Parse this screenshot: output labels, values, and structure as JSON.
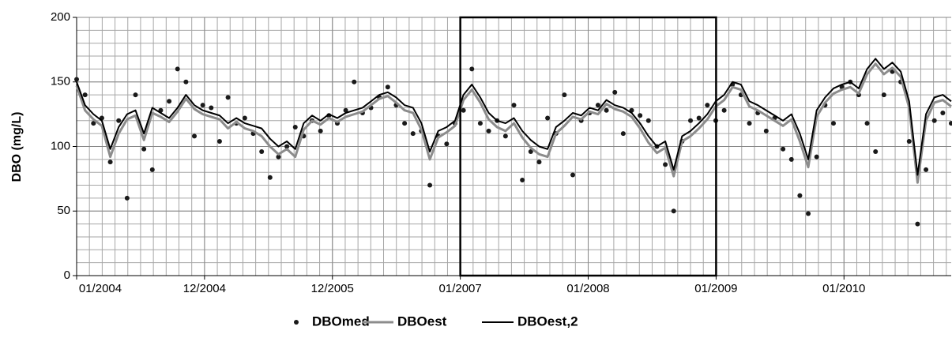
{
  "chart_data": {
    "type": "line",
    "ylabel": "DBO (mg/L)",
    "x": [
      0,
      24,
      48,
      72,
      96,
      120,
      144,
      168,
      192,
      216,
      240,
      264,
      288,
      312,
      336,
      360,
      384,
      408,
      432,
      456,
      480,
      504,
      528,
      552,
      576,
      600,
      624,
      648,
      672,
      696,
      720,
      744,
      768,
      792,
      816,
      840,
      864,
      888,
      912,
      936,
      960,
      984,
      1008,
      1032,
      1056,
      1080,
      1104,
      1128,
      1152,
      1176,
      1200,
      1224,
      1248,
      1272,
      1296,
      1320,
      1344,
      1368,
      1392,
      1416,
      1440,
      1464,
      1488,
      1512,
      1536,
      1560,
      1584,
      1608,
      1632,
      1656,
      1680,
      1704,
      1728,
      1752,
      1776,
      1800,
      1824,
      1848,
      1872,
      1896,
      1920,
      1944,
      1968,
      1992,
      2016,
      2040,
      2064,
      2088,
      2112,
      2136,
      2160,
      2184,
      2208,
      2232,
      2256,
      2280,
      2304,
      2328,
      2352,
      2376,
      2400,
      2424,
      2448,
      2472,
      2496
    ],
    "series": [
      {
        "name": "DBOmed",
        "color": "#1a1a1a",
        "marker": "dot",
        "values": [
          152,
          140,
          118,
          122,
          88,
          120,
          60,
          140,
          98,
          82,
          128,
          135,
          160,
          150,
          108,
          132,
          130,
          104,
          138,
          118,
          122,
          110,
          96,
          76,
          92,
          100,
          115,
          108,
          120,
          112,
          124,
          118,
          128,
          150,
          126,
          130,
          138,
          146,
          132,
          118,
          110,
          112,
          70,
          108,
          102,
          118,
          128,
          160,
          118,
          112,
          120,
          108,
          132,
          74,
          96,
          88,
          122,
          110,
          140,
          78,
          120,
          126,
          132,
          128,
          142,
          110,
          128,
          124,
          120,
          100,
          86,
          50,
          104,
          120,
          122,
          132,
          120,
          128,
          148,
          140,
          118,
          126,
          112,
          122,
          98,
          90,
          62,
          48,
          92,
          132,
          118,
          146,
          150,
          140,
          118,
          96,
          140,
          158,
          150,
          104,
          40,
          82,
          120,
          126,
          118
        ]
      },
      {
        "name": "DBOest",
        "color": "#8c8c8c",
        "values": [
          147,
          128,
          121,
          116,
          92,
          110,
          121,
          124,
          105,
          126,
          123,
          119,
          127,
          137,
          129,
          125,
          123,
          121,
          114,
          119,
          114,
          112,
          108,
          100,
          94,
          98,
          92,
          113,
          120,
          117,
          122,
          119,
          123,
          125,
          127,
          132,
          137,
          139,
          134,
          128,
          126,
          113,
          90,
          107,
          111,
          116,
          136,
          144,
          134,
          121,
          115,
          112,
          118,
          107,
          99,
          94,
          92,
          110,
          116,
          123,
          121,
          127,
          125,
          133,
          129,
          127,
          123,
          114,
          103,
          95,
          99,
          77,
          104,
          108,
          114,
          121,
          131,
          136,
          146,
          144,
          131,
          128,
          124,
          120,
          116,
          121,
          104,
          84,
          123,
          134,
          141,
          144,
          146,
          141,
          156,
          164,
          156,
          161,
          154,
          130,
          72,
          120,
          134,
          136,
          131
        ]
      },
      {
        "name": "DBOest,2",
        "color": "#000000",
        "values": [
          150,
          132,
          125,
          120,
          98,
          115,
          125,
          128,
          110,
          130,
          126,
          122,
          130,
          140,
          132,
          128,
          126,
          124,
          118,
          122,
          118,
          116,
          114,
          106,
          100,
          104,
          98,
          118,
          124,
          120,
          125,
          122,
          126,
          128,
          130,
          135,
          140,
          142,
          138,
          132,
          130,
          118,
          96,
          112,
          115,
          120,
          140,
          148,
          138,
          126,
          120,
          118,
          122,
          112,
          105,
          100,
          98,
          115,
          120,
          126,
          124,
          130,
          128,
          136,
          132,
          130,
          126,
          118,
          108,
          100,
          104,
          82,
          108,
          112,
          118,
          125,
          135,
          140,
          150,
          148,
          135,
          132,
          128,
          124,
          120,
          125,
          110,
          90,
          128,
          138,
          145,
          148,
          150,
          145,
          160,
          168,
          160,
          165,
          158,
          135,
          78,
          125,
          138,
          140,
          135
        ]
      }
    ],
    "xlim": [
      0,
      2496
    ],
    "xticks": [
      {
        "value": 0,
        "label": "01/2004"
      },
      {
        "value": 365,
        "label": "12/2004"
      },
      {
        "value": 730,
        "label": "12/2005"
      },
      {
        "value": 1095,
        "label": "01/2007"
      },
      {
        "value": 1460,
        "label": "01/2008"
      },
      {
        "value": 1825,
        "label": "01/2009"
      },
      {
        "value": 2190,
        "label": "01/2010"
      }
    ],
    "ylim": [
      0,
      200
    ],
    "yticks": [
      0,
      50,
      100,
      150,
      200
    ],
    "grid": true,
    "legend": "bottom"
  }
}
